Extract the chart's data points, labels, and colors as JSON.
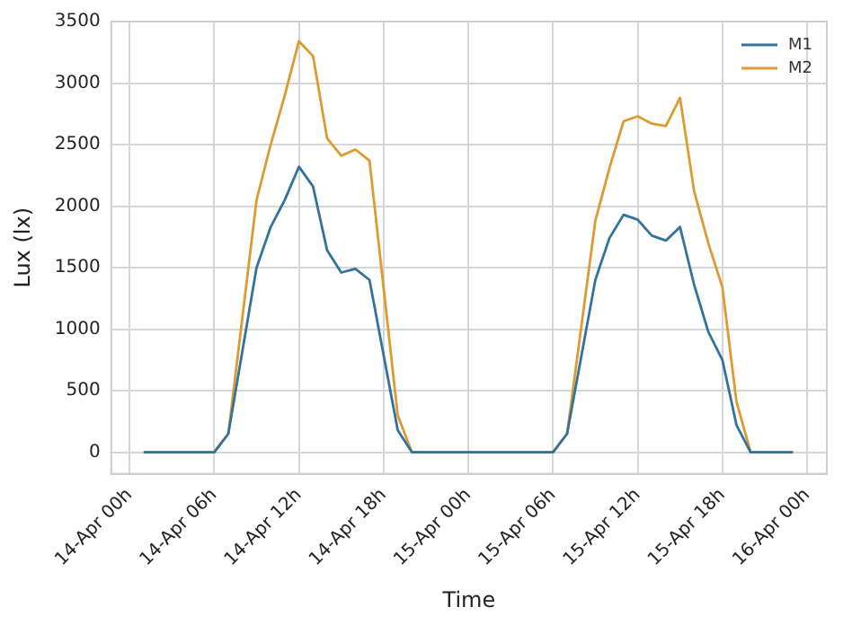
{
  "chart_data": {
    "type": "line",
    "xlabel": "Time",
    "ylabel": "Lux (lx)",
    "series": [
      {
        "name": "M1",
        "color": "#31739c",
        "values": [
          0,
          0,
          150,
          1500,
          1830,
          2050,
          2320,
          2160,
          1640,
          1460,
          1490,
          1400,
          180,
          0,
          0,
          150,
          1400,
          1740,
          1930,
          1890,
          1760,
          1720,
          1830,
          1360,
          980,
          750,
          220,
          0,
          0
        ]
      },
      {
        "name": "M2",
        "color": "#dd9a2f",
        "values": [
          0,
          0,
          150,
          2050,
          2500,
          2900,
          3340,
          3220,
          2550,
          2410,
          2460,
          2370,
          300,
          0,
          0,
          150,
          1880,
          2310,
          2690,
          2730,
          2670,
          2650,
          2880,
          2120,
          1700,
          1340,
          410,
          0,
          0
        ]
      }
    ],
    "x": [
      "--04-14T01:00",
      "--04-14T06:00",
      "--04-14T07:00",
      "--04-14T09:00",
      "--04-14T10:00",
      "--04-14T11:00",
      "--04-14T12:00",
      "--04-14T13:00",
      "--04-14T14:00",
      "--04-14T15:00",
      "--04-14T16:00",
      "--04-14T17:00",
      "--04-14T19:00",
      "--04-14T20:00",
      "--04-15T06:00",
      "--04-15T07:00",
      "--04-15T09:00",
      "--04-15T10:00",
      "--04-15T11:00",
      "--04-15T12:00",
      "--04-15T13:00",
      "--04-15T14:00",
      "--04-15T15:00",
      "--04-15T16:00",
      "--04-15T17:00",
      "--04-15T18:00",
      "--04-15T19:00",
      "--04-15T20:00",
      "--04-15T23:00"
    ],
    "xlim": [
      "--04-13T22:42",
      "--04-16T01:24"
    ],
    "xticks": [
      {
        "value": "--04-14T00:00",
        "label": "14-Apr 00h"
      },
      {
        "value": "--04-14T06:00",
        "label": "14-Apr 06h"
      },
      {
        "value": "--04-14T12:00",
        "label": "14-Apr 12h"
      },
      {
        "value": "--04-14T18:00",
        "label": "14-Apr 18h"
      },
      {
        "value": "--04-15T00:00",
        "label": "15-Apr 00h"
      },
      {
        "value": "--04-15T06:00",
        "label": "15-Apr 06h"
      },
      {
        "value": "--04-15T12:00",
        "label": "15-Apr 12h"
      },
      {
        "value": "--04-15T18:00",
        "label": "15-Apr 18h"
      },
      {
        "value": "--04-16T00:00",
        "label": "16-Apr 00h"
      }
    ],
    "ylim": [
      -175,
      3500
    ],
    "yticks": [
      0,
      500,
      1000,
      1500,
      2000,
      2500,
      3000,
      3500
    ],
    "grid": true,
    "legend": "top right",
    "marker": "none",
    "line_style": "solid"
  }
}
